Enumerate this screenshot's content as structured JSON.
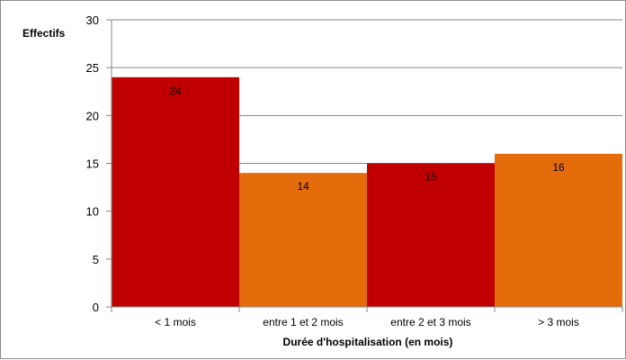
{
  "chart_data": {
    "type": "bar",
    "categories": [
      "< 1 mois",
      "entre 1 et 2 mois",
      "entre 2 et 3 mois",
      "> 3 mois"
    ],
    "values": [
      24,
      14,
      15,
      16
    ],
    "data_labels": [
      "24",
      "14",
      "15",
      "16"
    ],
    "bar_colors": [
      "#c00000",
      "#e46c0a",
      "#c00000",
      "#e46c0a"
    ],
    "title": "",
    "xlabel": "Durée d'hospitalisation  (en mois)",
    "ylabel": "Effectifs",
    "ylim": [
      0,
      30
    ],
    "yticks": [
      0,
      5,
      10,
      15,
      20,
      25,
      30
    ],
    "ytick_labels": [
      "0",
      "5",
      "10",
      "15",
      "20",
      "25",
      "30"
    ],
    "grid": true,
    "legend": "none"
  }
}
